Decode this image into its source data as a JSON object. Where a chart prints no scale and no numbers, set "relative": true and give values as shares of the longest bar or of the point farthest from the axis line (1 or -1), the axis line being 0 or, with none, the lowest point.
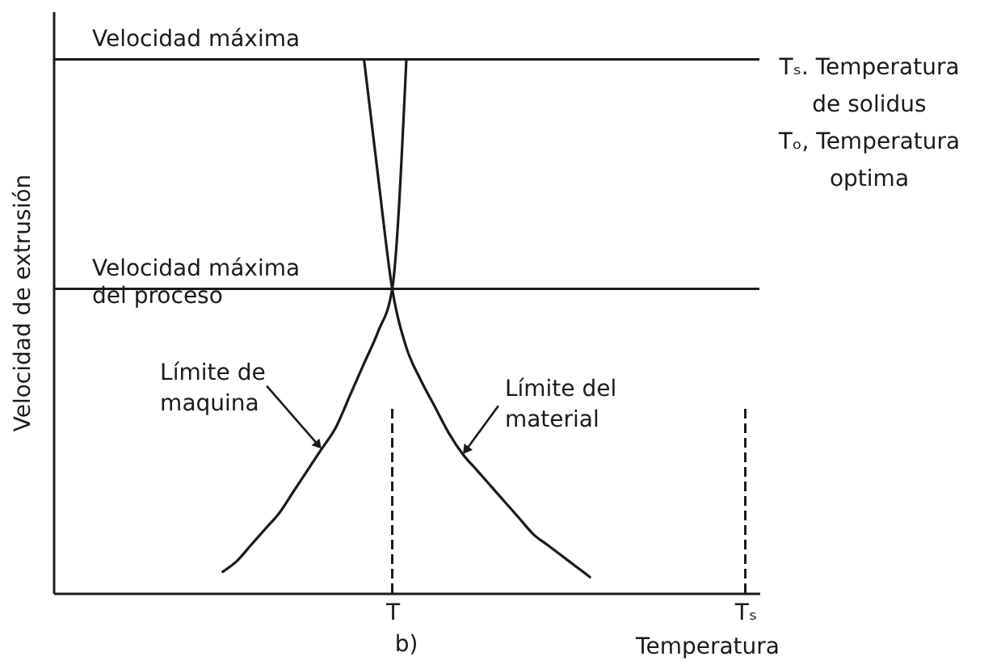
{
  "chart_data": {
    "type": "line",
    "xlabel": "Temperatura",
    "ylabel": "Velocidad de extrusión",
    "relative": true,
    "categories": [
      null,
      null,
      null,
      null,
      null,
      null,
      null,
      null,
      null,
      null,
      null,
      null,
      null,
      null,
      null,
      null,
      null,
      null,
      null,
      null,
      null,
      null,
      null,
      null,
      "T",
      null,
      null,
      null,
      null,
      null,
      null,
      null,
      null,
      null,
      null,
      null,
      null,
      null,
      null,
      null,
      null,
      null,
      null,
      null,
      null,
      null,
      null,
      null,
      null,
      "Tₛ",
      null
    ],
    "series": [
      {
        "name": "Límite de maquina",
        "color": "#1a1a1a",
        "values": [
          null,
          null,
          null,
          null,
          null,
          null,
          null,
          null,
          null,
          null,
          null,
          null,
          0.04,
          0.06,
          0.09,
          0.12,
          0.15,
          0.19,
          0.23,
          0.27,
          0.31,
          0.37,
          0.43,
          0.49,
          0.57,
          1,
          null,
          null,
          null,
          null,
          null,
          null,
          null,
          null,
          null,
          null,
          null,
          null,
          null,
          null,
          null,
          null,
          null,
          null,
          null,
          null,
          null,
          null,
          null,
          null,
          null
        ]
      },
      {
        "name": "Límite del material",
        "color": "#1a1a1a",
        "values": [
          null,
          null,
          null,
          null,
          null,
          null,
          null,
          null,
          null,
          null,
          null,
          null,
          null,
          null,
          null,
          null,
          null,
          null,
          null,
          null,
          null,
          null,
          1,
          0.78,
          0.57,
          0.46,
          0.4,
          0.35,
          0.3,
          0.26,
          0.23,
          0.2,
          0.17,
          0.14,
          0.11,
          0.09,
          0.07,
          0.05,
          0.03,
          null,
          null,
          null,
          null,
          null,
          null,
          null,
          null,
          null,
          null,
          null,
          null
        ]
      }
    ],
    "ref_lines": [
      {
        "axis": "y",
        "value": 1,
        "label": "Velocidad máxima"
      },
      {
        "axis": "y",
        "value": 0.57,
        "label": "Velocidad máxima del proceso"
      },
      {
        "axis": "x",
        "value": "T",
        "line_style": "dashed"
      },
      {
        "axis": "x",
        "value": "Tₛ",
        "line_style": "dashed"
      }
    ],
    "annotations": [
      "Tₛ. Temperatura de solidus",
      "Tₒ, Temperatura optima",
      "b)"
    ]
  }
}
